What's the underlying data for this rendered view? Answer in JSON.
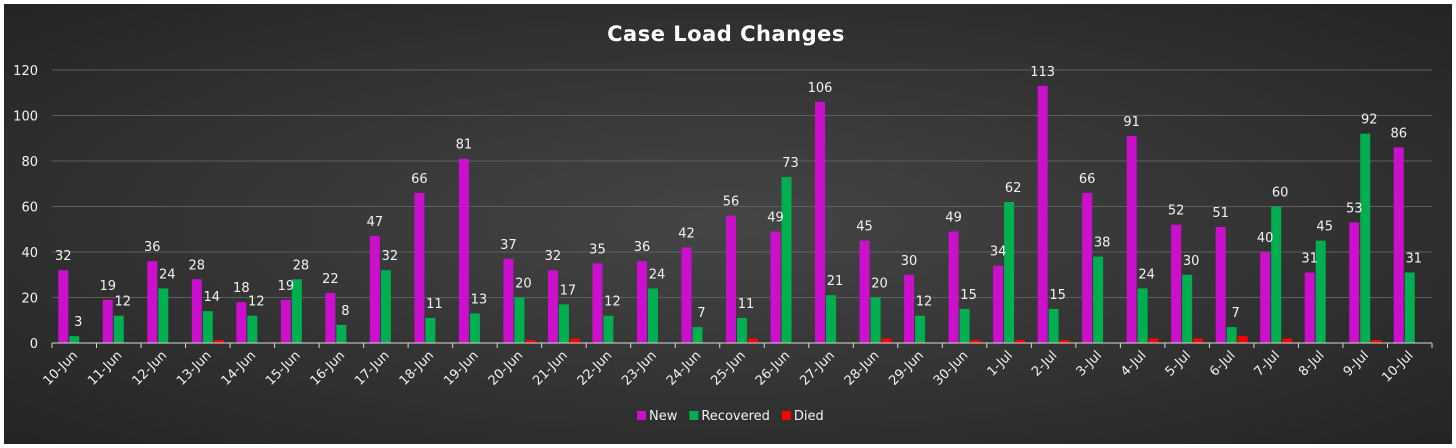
{
  "chart_data": {
    "type": "bar",
    "title": "Case Load Changes",
    "categories": [
      "10-Jun",
      "11-Jun",
      "12-Jun",
      "13-Jun",
      "14-Jun",
      "15-Jun",
      "16-Jun",
      "17-Jun",
      "18-Jun",
      "19-Jun",
      "20-Jun",
      "21-Jun",
      "22-Jun",
      "23-Jun",
      "24-Jun",
      "25-Jun",
      "26-Jun",
      "27-Jun",
      "28-Jun",
      "29-Jun",
      "30-Jun",
      "1-Jul",
      "2-Jul",
      "3-Jul",
      "4-Jul",
      "5-Jul",
      "6-Jul",
      "7-Jul",
      "8-Jul",
      "9-Jul",
      "10-Jul"
    ],
    "series": [
      {
        "name": "New",
        "color": "#cc0fcc",
        "show_labels": true,
        "values": [
          32,
          19,
          36,
          28,
          18,
          19,
          22,
          47,
          66,
          81,
          37,
          32,
          35,
          36,
          42,
          56,
          49,
          106,
          45,
          30,
          49,
          34,
          113,
          66,
          91,
          52,
          51,
          40,
          31,
          53,
          86
        ]
      },
      {
        "name": "Recovered",
        "color": "#00b050",
        "show_labels": true,
        "values": [
          3,
          12,
          24,
          14,
          12,
          28,
          8,
          32,
          11,
          13,
          20,
          17,
          12,
          24,
          7,
          11,
          73,
          21,
          20,
          12,
          15,
          62,
          15,
          38,
          24,
          30,
          7,
          60,
          45,
          92,
          31
        ]
      },
      {
        "name": "Died",
        "color": "#ff0000",
        "show_labels": false,
        "values": [
          0,
          0,
          0,
          1,
          0,
          0,
          0,
          0,
          0,
          0,
          1,
          2,
          0,
          0,
          0,
          2,
          0,
          0,
          2,
          0,
          1,
          1,
          1,
          0,
          2,
          2,
          3,
          2,
          0,
          1,
          0
        ]
      }
    ],
    "yticks": [
      0,
      20,
      40,
      60,
      80,
      100,
      120
    ],
    "ylim": [
      0,
      120
    ],
    "grid": true,
    "legend_position": "bottom"
  }
}
